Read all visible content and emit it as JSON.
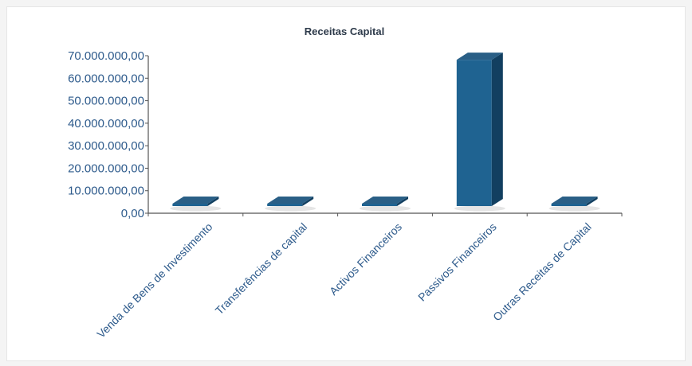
{
  "chart_data": {
    "type": "bar",
    "title": "Receitas Capital",
    "categories": [
      "Venda de Bens de Investimento",
      "Transferências de capital",
      "Activos Financeiros",
      "Passivos Financeiros",
      "Outras Receitas de Capital"
    ],
    "values": [
      0,
      200000,
      0,
      65000000,
      0
    ],
    "ylim": [
      0,
      70000000
    ],
    "yticks": [
      "0,00",
      "10.000.000,00",
      "20.000.000,00",
      "30.000.000,00",
      "40.000.000,00",
      "50.000.000,00",
      "60.000.000,00",
      "70.000.000,00"
    ],
    "grid": false,
    "legend": "none",
    "colors": {
      "bar_front": "#1f6391",
      "bar_top": "#2a5f86",
      "bar_side": "#123f60",
      "axis": "#555555",
      "labels": "#2e5b8c"
    }
  }
}
